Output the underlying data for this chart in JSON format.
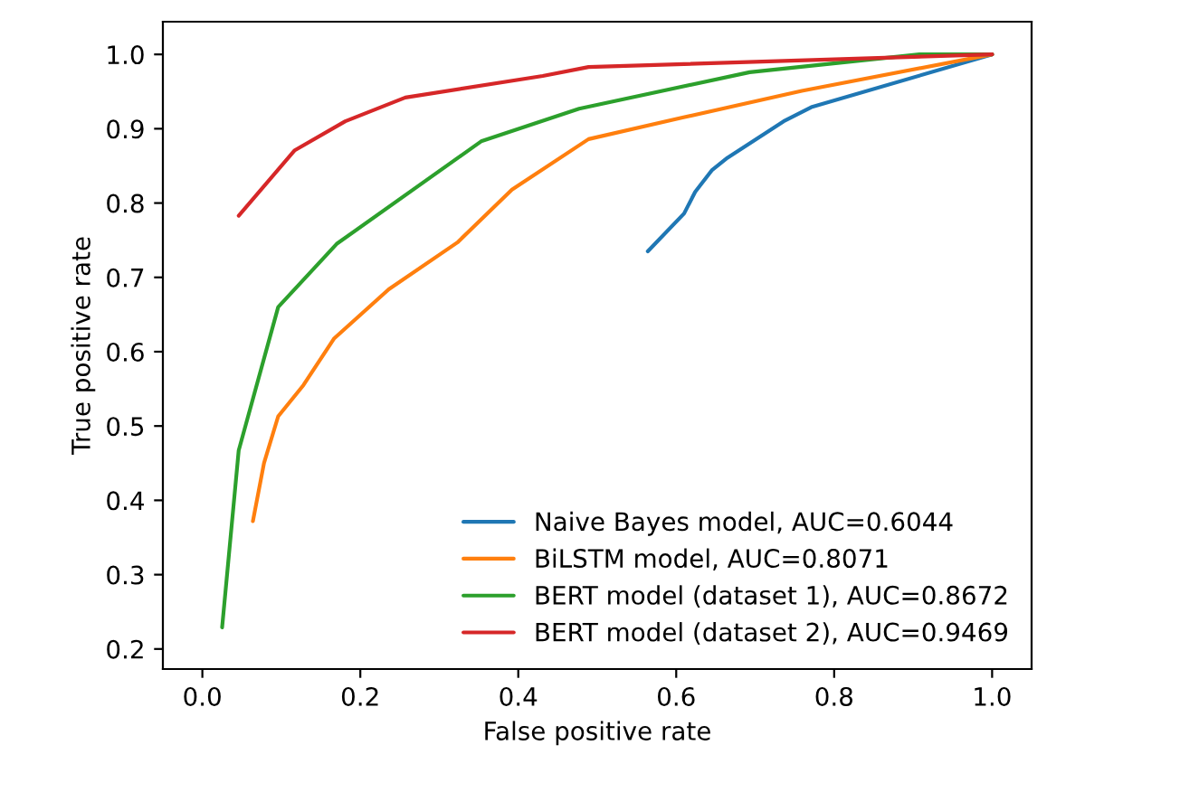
{
  "chart_data": {
    "type": "line",
    "xlabel": "False positive rate",
    "ylabel": "True positive rate",
    "xlim": [
      -0.05,
      1.05
    ],
    "ylim": [
      0.173,
      1.044
    ],
    "xticks": [
      {
        "value": 0,
        "label": "0.0"
      },
      {
        "value": 0.2,
        "label": "0.2"
      },
      {
        "value": 0.4,
        "label": "0.4"
      },
      {
        "value": 0.6,
        "label": "0.6"
      },
      {
        "value": 0.8,
        "label": "0.8"
      },
      {
        "value": 1,
        "label": "1.0"
      }
    ],
    "yticks": [
      0.2,
      0.3,
      0.4,
      0.5,
      0.6,
      0.7,
      0.8,
      0.9,
      {
        "value": 1,
        "label": "1.0"
      }
    ],
    "grid": false,
    "legend": "bottom right",
    "series": [
      {
        "name": "Naive Bayes model, AUC=0.6044",
        "color": "#1f77b4",
        "x": [
          0.564,
          0.61,
          0.624,
          0.645,
          0.665,
          0.736,
          0.771,
          1.0
        ],
        "values": [
          0.735,
          0.786,
          0.815,
          0.844,
          0.861,
          0.91,
          0.929,
          1.0
        ]
      },
      {
        "name": "BiLSTM model, AUC=0.8071",
        "color": "#ff7f0e",
        "x": [
          0.064,
          0.078,
          0.096,
          0.128,
          0.167,
          0.236,
          0.323,
          0.392,
          0.489,
          0.608,
          0.759,
          1.0
        ],
        "values": [
          0.372,
          0.45,
          0.513,
          0.555,
          0.618,
          0.684,
          0.747,
          0.818,
          0.886,
          0.915,
          0.951,
          1.0
        ]
      },
      {
        "name": "BERT model (dataset 1), AUC=0.8672",
        "color": "#2ca02c",
        "x": [
          0.025,
          0.046,
          0.096,
          0.17,
          0.353,
          0.477,
          0.693,
          0.908,
          1.0
        ],
        "values": [
          0.229,
          0.467,
          0.66,
          0.745,
          0.883,
          0.927,
          0.976,
          1.0,
          1.0
        ]
      },
      {
        "name": "BERT model (dataset 2), AUC=0.9469",
        "color": "#d62728",
        "x": [
          0.046,
          0.117,
          0.181,
          0.257,
          0.431,
          0.489,
          1.0
        ],
        "values": [
          0.783,
          0.871,
          0.91,
          0.942,
          0.971,
          0.983,
          1.0
        ]
      }
    ]
  }
}
